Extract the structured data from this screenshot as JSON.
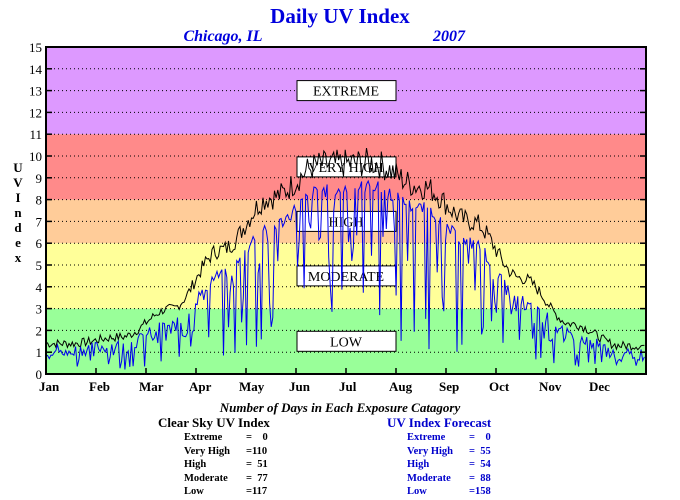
{
  "chart_data": {
    "type": "line",
    "title": "Daily UV Index",
    "subtitle_location": "Chicago, IL",
    "subtitle_year": "2007",
    "ylabel": "UV Index",
    "ylim": [
      0,
      15
    ],
    "yticks": [
      "0",
      "1",
      "2",
      "3",
      "4",
      "5",
      "6",
      "7",
      "8",
      "9",
      "10",
      "11",
      "12",
      "13",
      "14",
      "15"
    ],
    "months": [
      "Jan",
      "Feb",
      "Mar",
      "Apr",
      "May",
      "Jun",
      "Jul",
      "Aug",
      "Sep",
      "Oct",
      "Nov",
      "Dec"
    ],
    "grid": true,
    "bands": [
      {
        "label": "LOW",
        "from": 0,
        "to": 3,
        "color": "#99ff99"
      },
      {
        "label": "MODERATE",
        "from": 3,
        "to": 6,
        "color": "#ffff99"
      },
      {
        "label": "HIGH",
        "from": 6,
        "to": 8,
        "color": "#ffcc99"
      },
      {
        "label": "VERY HIGH",
        "from": 8,
        "to": 11,
        "color": "#ff8a8a"
      },
      {
        "label": "EXTREME",
        "from": 11,
        "to": 15,
        "color": "#dd99ff"
      }
    ],
    "series": [
      {
        "key": "clear_sky",
        "color": "#000000",
        "monthly_values": [
          1.4,
          1.7,
          3.0,
          5.7,
          8.1,
          9.6,
          9.7,
          8.6,
          7.0,
          4.4,
          2.3,
          1.3
        ],
        "peak": 10.5
      },
      {
        "key": "forecast",
        "color": "#0000ee",
        "monthly_values": [
          1.1,
          1.3,
          2.2,
          4.5,
          6.8,
          8.4,
          8.6,
          7.6,
          6.0,
          3.4,
          1.8,
          0.9
        ]
      }
    ]
  },
  "caption": "Number of Days in Each Exposure Catagory",
  "clear_sky_stats": {
    "title": "Clear Sky UV Index",
    "color": "#000000",
    "rows": [
      {
        "label": "Extreme",
        "value": "=    0"
      },
      {
        "label": "Very High",
        "value": "=110"
      },
      {
        "label": "High",
        "value": "=  51"
      },
      {
        "label": "Moderate",
        "value": "=  77"
      },
      {
        "label": "Low",
        "value": "=117"
      }
    ]
  },
  "forecast_stats": {
    "title": "UV Index Forecast",
    "color": "#0000cc",
    "rows": [
      {
        "label": "Extreme",
        "value": "=    0"
      },
      {
        "label": "Very High",
        "value": "=  55"
      },
      {
        "label": "High",
        "value": "=  54"
      },
      {
        "label": "Moderate",
        "value": "=  88"
      },
      {
        "label": "Low",
        "value": "=158"
      }
    ]
  }
}
